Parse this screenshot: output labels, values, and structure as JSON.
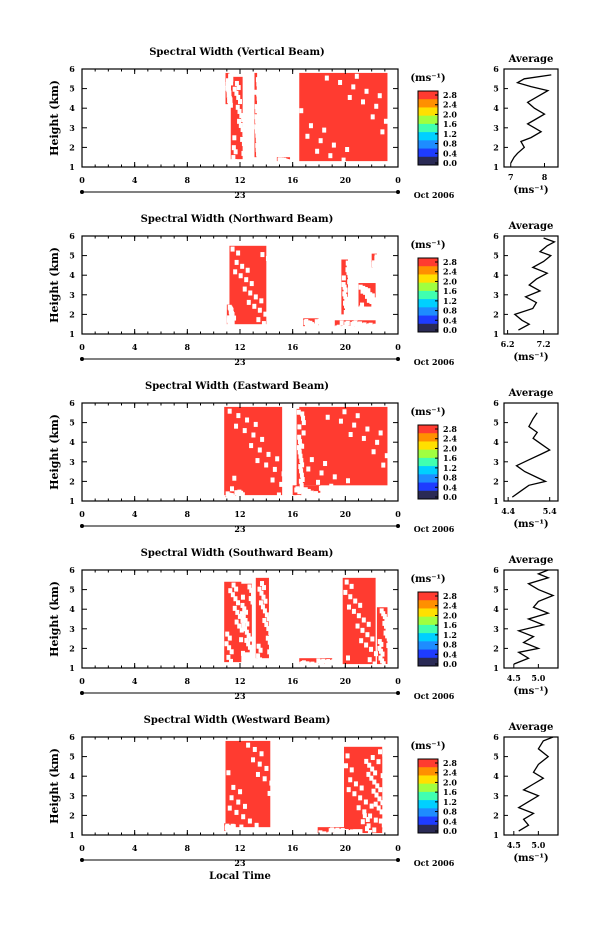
{
  "figure": {
    "xlabel": "Local Time",
    "date_label": "Oct 2006",
    "day_label": "23",
    "colorbar_unit": "(ms⁻¹)",
    "avg_title": "Average",
    "avg_unit": "(ms⁻¹)",
    "ylabel": "Height (km)",
    "colorbar_ticks": [
      "0.0",
      "0.4",
      "0.8",
      "1.2",
      "1.6",
      "2.0",
      "2.4",
      "2.8"
    ],
    "colorbar_ticks_west": [
      "0.0",
      "0.4",
      "0.8",
      "1.2",
      "1.6",
      "2.0",
      "2.4",
      "2.8"
    ],
    "x_ticks": [
      "0",
      "4",
      "8",
      "12",
      "16",
      "20",
      "0"
    ],
    "y_ticks": [
      "1",
      "2",
      "3",
      "4",
      "5",
      "6"
    ],
    "colors": {
      "fill": "#ff3b30",
      "colorbar": [
        "#2a2a55",
        "#1e3cff",
        "#1e8cff",
        "#00d0ff",
        "#40ffb0",
        "#a0ff40",
        "#ffe000",
        "#ff9000",
        "#ff3b30"
      ]
    }
  },
  "chart_data": [
    {
      "type": "heatmap",
      "title": "Spectral Width (Vertical Beam)",
      "xlabel": "",
      "ylabel": "Height (km)",
      "xlim": [
        0,
        24
      ],
      "ylim": [
        1,
        6
      ],
      "blocks": [
        [
          10.9,
          11.2,
          4.2,
          5.8
        ],
        [
          11.3,
          12.2,
          1.4,
          5.6
        ],
        [
          13.1,
          13.3,
          1.5,
          5.8
        ],
        [
          14.8,
          15.8,
          1.3,
          1.5
        ],
        [
          16.5,
          23.2,
          1.3,
          5.8
        ]
      ],
      "avg_title": "Average",
      "avg_xticks": [
        "7",
        "8"
      ],
      "avg_xlim": [
        6.8,
        8.4
      ],
      "avg_x": [
        7.0,
        7.1,
        7.2,
        7.4,
        7.3,
        7.6,
        7.9,
        7.7,
        7.5,
        7.7,
        8.0,
        7.7,
        7.5,
        7.8,
        8.1,
        7.6,
        7.2,
        7.4,
        8.2
      ],
      "avg_y": [
        1.2,
        1.5,
        1.7,
        2.0,
        2.3,
        2.5,
        2.8,
        3.0,
        3.2,
        3.4,
        3.7,
        4.0,
        4.3,
        4.6,
        4.9,
        5.1,
        5.3,
        5.5,
        5.7
      ]
    },
    {
      "type": "heatmap",
      "title": "Spectral Width (Northward Beam)",
      "xlabel": "",
      "ylabel": "Height (km)",
      "xlim": [
        0,
        24
      ],
      "ylim": [
        1,
        6
      ],
      "blocks": [
        [
          11.2,
          14.0,
          1.5,
          5.5
        ],
        [
          11.0,
          11.3,
          1.5,
          2.5
        ],
        [
          16.8,
          18.0,
          1.4,
          1.8
        ],
        [
          19.2,
          22.3,
          1.4,
          1.7
        ],
        [
          19.7,
          20.2,
          2.0,
          4.8
        ],
        [
          21.0,
          22.3,
          2.4,
          3.6
        ],
        [
          22.0,
          22.4,
          4.4,
          5.1
        ]
      ],
      "avg_title": "Average",
      "avg_xticks": [
        "6.2",
        "7.2"
      ],
      "avg_xlim": [
        6.1,
        7.6
      ],
      "avg_x": [
        6.5,
        6.8,
        6.6,
        6.4,
        6.9,
        7.0,
        6.7,
        7.1,
        6.8,
        7.0,
        7.3,
        6.9,
        7.2,
        7.4,
        7.1,
        7.3,
        7.5,
        7.2
      ],
      "avg_y": [
        1.2,
        1.5,
        1.7,
        2.0,
        2.3,
        2.6,
        2.9,
        3.2,
        3.5,
        3.8,
        4.1,
        4.4,
        4.7,
        5.0,
        5.2,
        5.5,
        5.7,
        5.9
      ]
    },
    {
      "type": "heatmap",
      "title": "Spectral Width (Eastward Beam)",
      "xlabel": "",
      "ylabel": "Height (km)",
      "xlim": [
        0,
        24
      ],
      "ylim": [
        1,
        6
      ],
      "blocks": [
        [
          10.8,
          15.2,
          1.3,
          5.8
        ],
        [
          10.9,
          12.1,
          1.2,
          1.6
        ],
        [
          16.0,
          18.1,
          1.3,
          1.8
        ],
        [
          16.5,
          23.2,
          1.8,
          5.8
        ],
        [
          16.3,
          16.7,
          1.3,
          5.7
        ]
      ],
      "avg_title": "Average",
      "avg_xticks": [
        "4.4",
        "5.4"
      ],
      "avg_xlim": [
        4.3,
        5.6
      ],
      "avg_x": [
        4.5,
        4.7,
        4.9,
        5.3,
        5.1,
        4.8,
        4.6,
        4.9,
        5.2,
        5.4,
        5.2,
        5.0,
        5.1,
        4.9,
        5.0,
        5.1
      ],
      "avg_y": [
        1.2,
        1.5,
        1.8,
        2.0,
        2.2,
        2.5,
        2.8,
        3.1,
        3.4,
        3.6,
        3.9,
        4.2,
        4.5,
        4.8,
        5.2,
        5.5
      ]
    },
    {
      "type": "heatmap",
      "title": "Spectral Width (Southward Beam)",
      "xlabel": "",
      "ylabel": "Height (km)",
      "xlim": [
        0,
        24
      ],
      "ylim": [
        1,
        6
      ],
      "blocks": [
        [
          10.8,
          12.1,
          1.3,
          5.4
        ],
        [
          12.0,
          12.9,
          1.8,
          5.3
        ],
        [
          13.2,
          14.2,
          1.5,
          5.6
        ],
        [
          16.5,
          19.0,
          1.2,
          1.5
        ],
        [
          19.8,
          22.3,
          1.2,
          5.6
        ],
        [
          22.4,
          23.2,
          1.2,
          4.1
        ]
      ],
      "avg_title": "Average",
      "avg_xticks": [
        "4.5",
        "5.0"
      ],
      "avg_xlim": [
        4.3,
        5.4
      ],
      "avg_x": [
        4.5,
        4.8,
        4.6,
        5.0,
        4.7,
        4.9,
        4.6,
        5.1,
        4.8,
        5.2,
        4.9,
        5.0,
        5.3,
        5.0,
        4.8,
        5.2,
        5.0,
        5.2
      ],
      "avg_y": [
        1.2,
        1.5,
        1.8,
        2.0,
        2.3,
        2.6,
        2.9,
        3.2,
        3.5,
        3.8,
        4.1,
        4.4,
        4.7,
        5.0,
        5.3,
        5.6,
        5.8,
        6.0
      ]
    },
    {
      "type": "heatmap",
      "title": "Spectral Width (Westward Beam)",
      "xlabel": "Local Time",
      "ylabel": "Height (km)",
      "xlim": [
        0,
        24
      ],
      "ylim": [
        1,
        6
      ],
      "blocks": [
        [
          10.9,
          14.3,
          1.4,
          5.8
        ],
        [
          10.8,
          11.4,
          1.2,
          1.6
        ],
        [
          17.9,
          20.6,
          1.1,
          1.4
        ],
        [
          19.9,
          22.8,
          1.3,
          5.5
        ],
        [
          21.3,
          22.8,
          1.1,
          5.0
        ]
      ],
      "avg_title": "Average",
      "avg_xticks": [
        "4.5",
        "5.0"
      ],
      "avg_xlim": [
        4.3,
        5.4
      ],
      "avg_x": [
        4.6,
        4.8,
        4.7,
        4.9,
        4.6,
        4.8,
        5.0,
        4.7,
        4.9,
        5.1,
        4.9,
        5.0,
        5.2,
        5.0,
        5.1,
        5.3
      ],
      "avg_y": [
        1.2,
        1.5,
        1.8,
        2.1,
        2.4,
        2.7,
        3.0,
        3.3,
        3.6,
        3.9,
        4.2,
        4.6,
        5.0,
        5.4,
        5.8,
        6.0
      ]
    }
  ]
}
